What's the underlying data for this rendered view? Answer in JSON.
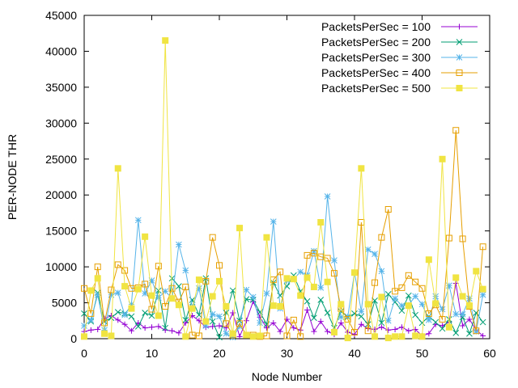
{
  "chart_data": {
    "type": "line",
    "title": "",
    "xlabel": "Node Number",
    "ylabel": "PER-NODE THR",
    "xlim": [
      0,
      60
    ],
    "ylim": [
      0,
      45000
    ],
    "xticks": [
      0,
      10,
      20,
      30,
      40,
      50,
      60
    ],
    "yticks": [
      0,
      5000,
      10000,
      15000,
      20000,
      25000,
      30000,
      35000,
      40000,
      45000
    ],
    "grid": false,
    "legend_position": "top-right",
    "x": [
      0,
      1,
      2,
      3,
      4,
      5,
      6,
      7,
      8,
      9,
      10,
      11,
      12,
      13,
      14,
      15,
      16,
      17,
      18,
      19,
      20,
      21,
      22,
      23,
      24,
      25,
      26,
      27,
      28,
      29,
      30,
      31,
      32,
      33,
      34,
      35,
      36,
      37,
      38,
      39,
      40,
      41,
      42,
      43,
      44,
      45,
      46,
      47,
      48,
      49,
      50,
      51,
      52,
      53,
      54,
      55,
      56,
      57,
      58,
      59
    ],
    "series": [
      {
        "name": "PacketsPerSec = 100",
        "color": "#9400d3",
        "marker": "plus",
        "values": [
          1000,
          1200,
          1300,
          2800,
          3200,
          2600,
          2000,
          1100,
          2200,
          1500,
          1600,
          1700,
          1200,
          1100,
          800,
          2200,
          3200,
          2500,
          1600,
          1700,
          1800,
          1500,
          3600,
          300,
          2500,
          5200,
          3000,
          1500,
          2200,
          1000,
          2700,
          1500,
          1200,
          4000,
          1000,
          2400,
          1000,
          600,
          2200,
          900,
          600,
          2000,
          1400,
          1300,
          1600,
          1200,
          1300,
          1600,
          1100,
          1300,
          400,
          700,
          2000,
          1800,
          2300,
          7700,
          1800,
          2700,
          1200,
          400
        ]
      },
      {
        "name": "PacketsPerSec = 200",
        "color": "#009e73",
        "marker": "cross",
        "values": [
          3500,
          2400,
          6400,
          2400,
          2900,
          3700,
          3500,
          3100,
          1700,
          3600,
          3200,
          6700,
          1500,
          8400,
          7300,
          2600,
          5400,
          3300,
          8400,
          2400,
          200,
          3600,
          6700,
          2500,
          5500,
          5400,
          3700,
          2000,
          7800,
          6000,
          7300,
          8800,
          6600,
          5200,
          2900,
          5400,
          3600,
          1500,
          3800,
          3000,
          3500,
          3100,
          2000,
          5300,
          2200,
          6200,
          5100,
          3900,
          6000,
          3300,
          2200,
          3100,
          2300,
          1400,
          2700,
          800,
          3000,
          700,
          3600,
          2300
        ]
      },
      {
        "name": "PacketsPerSec = 300",
        "color": "#56b4e9",
        "marker": "asterisk",
        "values": [
          1800,
          2600,
          6100,
          1200,
          6100,
          6400,
          3300,
          4800,
          16500,
          6300,
          8100,
          5700,
          6600,
          5600,
          13100,
          9500,
          4400,
          7000,
          1800,
          3400,
          3100,
          700,
          200,
          1700,
          6800,
          5800,
          2200,
          6300,
          16300,
          4200,
          8100,
          8300,
          9300,
          8800,
          12200,
          7100,
          19800,
          10900,
          3000,
          3100,
          9200,
          3800,
          12400,
          11800,
          9400,
          2500,
          5600,
          4600,
          4700,
          5900,
          4800,
          2600,
          5900,
          4100,
          7400,
          3400,
          3400,
          5600,
          1000,
          6100
        ]
      },
      {
        "name": "PacketsPerSec = 400",
        "color": "#e69f00",
        "marker": "square",
        "values": [
          7000,
          3500,
          10000,
          2200,
          6800,
          10300,
          9500,
          7000,
          7100,
          7600,
          4100,
          10100,
          4500,
          7000,
          5100,
          7200,
          500,
          400,
          8000,
          14100,
          10200,
          2100,
          500,
          2100,
          500,
          500,
          300,
          400,
          8200,
          9300,
          400,
          2600,
          300,
          11600,
          11900,
          11400,
          11200,
          9100,
          4200,
          2700,
          900,
          16200,
          1100,
          7800,
          14100,
          18000,
          6600,
          7100,
          8800,
          7900,
          7000,
          3500,
          4700,
          2700,
          14000,
          29000,
          13900,
          4500,
          1100,
          12800
        ]
      },
      {
        "name": "PacketsPerSec = 500",
        "color": "#f0e442",
        "marker": "filled-square",
        "values": [
          300,
          6700,
          8400,
          700,
          400,
          23700,
          7300,
          4200,
          6900,
          14200,
          6000,
          3200,
          41500,
          5600,
          4700,
          300,
          4200,
          8200,
          2400,
          5900,
          8000,
          4500,
          700,
          15400,
          500,
          300,
          400,
          14100,
          4600,
          4500,
          8400,
          8300,
          6000,
          8500,
          7200,
          16200,
          7900,
          900,
          4800,
          100,
          9200,
          23700,
          4800,
          300,
          5800,
          100,
          300,
          300,
          4600,
          400,
          300,
          11000,
          4900,
          25000,
          1600,
          8500,
          5900,
          4600,
          9400,
          6900
        ]
      }
    ]
  }
}
